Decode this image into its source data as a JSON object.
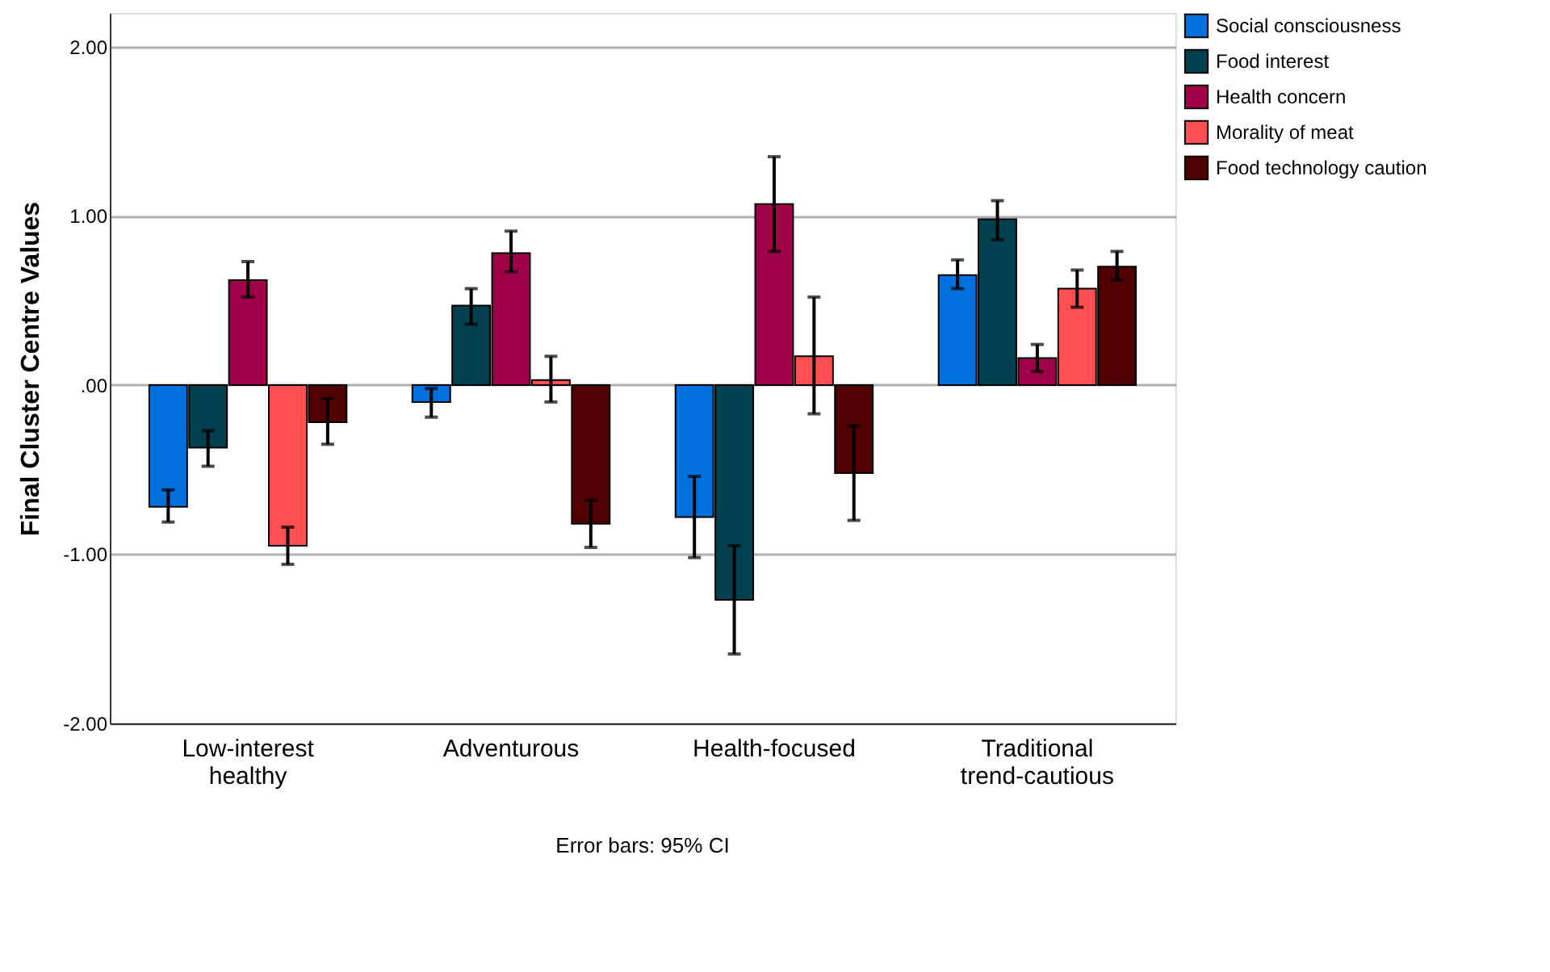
{
  "chart_data": {
    "type": "bar",
    "ylabel": "Final Cluster Centre Values",
    "categories": [
      "Low-interest healthy",
      "Adventurous",
      "Health-focused",
      "Traditional trend-cautious"
    ],
    "series": [
      {
        "name": "Social consciousness",
        "color": "#0070dd",
        "values": [
          -0.72,
          -0.1,
          -0.78,
          0.65
        ],
        "errors": [
          [
            -0.81,
            -0.62
          ],
          [
            -0.19,
            -0.02
          ],
          [
            -1.02,
            -0.54
          ],
          [
            0.57,
            0.74
          ]
        ]
      },
      {
        "name": "Food interest",
        "color": "#00404f",
        "values": [
          -0.37,
          0.47,
          -1.27,
          0.98
        ],
        "errors": [
          [
            -0.48,
            -0.27
          ],
          [
            0.36,
            0.57
          ],
          [
            -1.59,
            -0.95
          ],
          [
            0.86,
            1.09
          ]
        ]
      },
      {
        "name": "Health concern",
        "color": "#a00048",
        "values": [
          0.62,
          0.78,
          1.07,
          0.16
        ],
        "errors": [
          [
            0.52,
            0.73
          ],
          [
            0.67,
            0.91
          ],
          [
            0.79,
            1.35
          ],
          [
            0.08,
            0.24
          ]
        ]
      },
      {
        "name": "Morality of meat",
        "color": "#ff4f52",
        "values": [
          -0.95,
          0.03,
          0.17,
          0.57
        ],
        "errors": [
          [
            -1.06,
            -0.84
          ],
          [
            -0.1,
            0.17
          ],
          [
            -0.17,
            0.52
          ],
          [
            0.46,
            0.68
          ]
        ]
      },
      {
        "name": "Food technology caution",
        "color": "#500000",
        "values": [
          -0.22,
          -0.82,
          -0.52,
          0.7
        ],
        "errors": [
          [
            -0.35,
            -0.08
          ],
          [
            -0.96,
            -0.68
          ],
          [
            -0.8,
            -0.24
          ],
          [
            0.62,
            0.79
          ]
        ]
      }
    ],
    "ylim": [
      -2,
      2.2
    ],
    "yticks": [
      {
        "value": -2,
        "label": "-2.00"
      },
      {
        "value": -1,
        "label": "-1.00"
      },
      {
        "value": 0,
        "label": ".00"
      },
      {
        "value": 1,
        "label": "1.00"
      },
      {
        "value": 2,
        "label": "2.00"
      }
    ],
    "grid": "y",
    "legend": "top right",
    "annotations": [
      "Error bars: 95% CI"
    ]
  }
}
